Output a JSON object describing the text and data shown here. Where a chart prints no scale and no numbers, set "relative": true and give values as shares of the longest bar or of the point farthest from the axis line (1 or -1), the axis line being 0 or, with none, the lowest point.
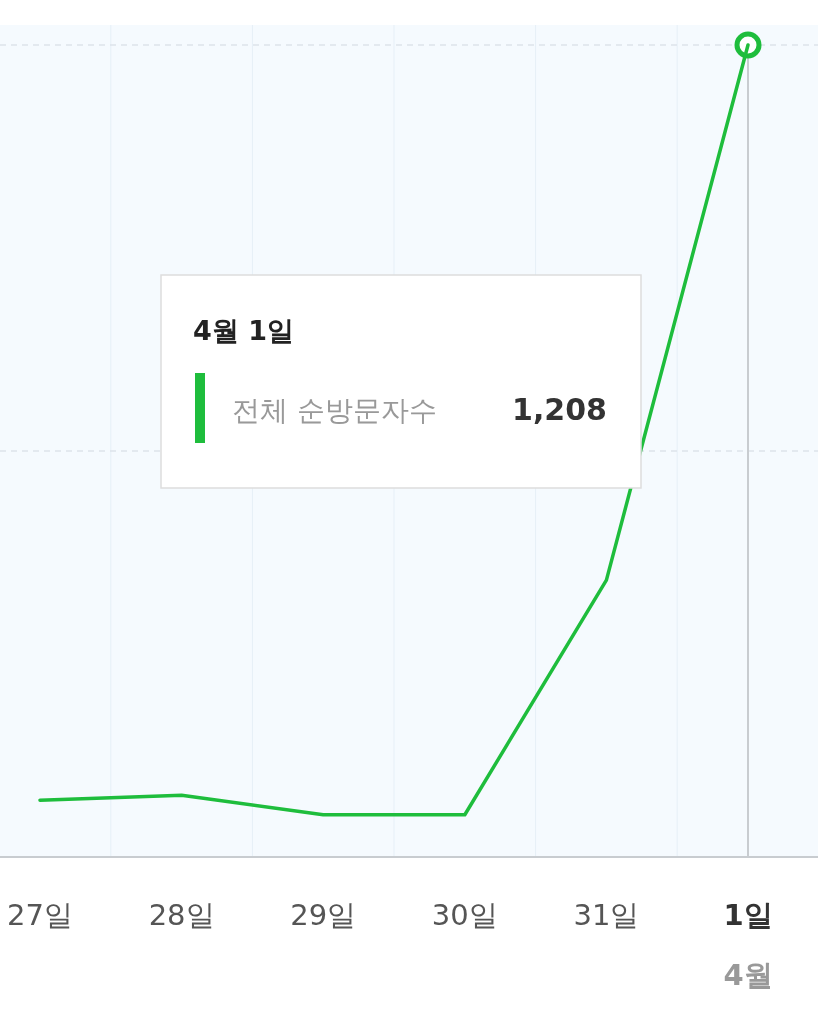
{
  "chart_data": {
    "type": "line",
    "relative": true,
    "grid": "x",
    "marker": "none",
    "line_style": "solid",
    "categories": [
      "27일",
      "28일",
      "29일",
      "30일",
      "31일",
      "1일"
    ],
    "series": [
      {
        "name": "전체 순방문자수",
        "color": "#1ebd3c",
        "values": [
          0.07,
          0.076,
          0.052,
          0.052,
          0.341,
          1
        ]
      }
    ],
    "ref_lines": [
      {
        "axis": "y",
        "value": 0.5,
        "color": "#dde3ea",
        "line_style": "dashed"
      },
      {
        "axis": "y",
        "value": 1,
        "color": "#dde3ea",
        "line_style": "dashed"
      },
      {
        "axis": "x",
        "value": "1일",
        "color": "#c8ccd0",
        "line_style": "solid"
      }
    ],
    "annotations": [
      "4월 1일",
      "1,208",
      "4월"
    ]
  }
}
